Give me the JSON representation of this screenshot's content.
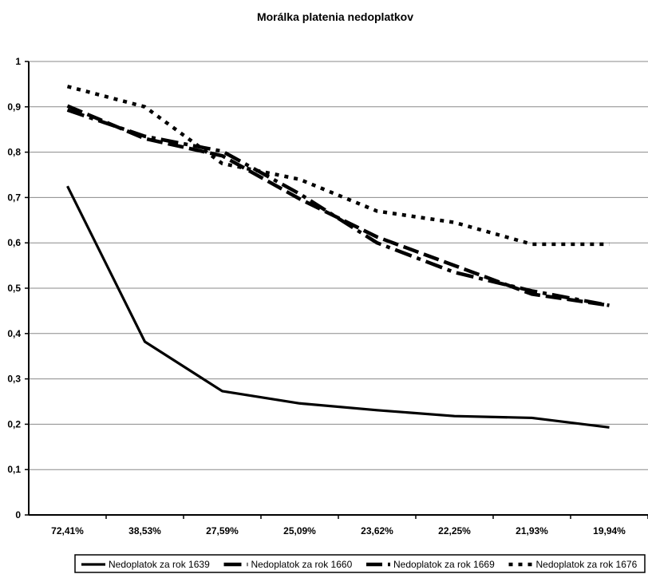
{
  "chart_data": {
    "type": "line",
    "title": "Morálka platenia nedoplatkov",
    "xlabel": "",
    "ylabel": "",
    "categories": [
      "72,41%",
      "38,53%",
      "27,59%",
      "25,09%",
      "23,62%",
      "22,25%",
      "21,93%",
      "19,94%"
    ],
    "y_ticks": [
      "0",
      "0,1",
      "0,2",
      "0,3",
      "0,4",
      "0,5",
      "0,6",
      "0,7",
      "0,8",
      "0,9",
      "1"
    ],
    "ylim": [
      0,
      1
    ],
    "grid": true,
    "legend_position": "bottom",
    "series": [
      {
        "name": "Nedoplatok za rok 1639",
        "style": "solid",
        "values": [
          0.725,
          0.382,
          0.273,
          0.246,
          0.231,
          0.218,
          0.214,
          0.193
        ]
      },
      {
        "name": "Nedoplatok za rok 1660",
        "style": "dash-dot",
        "values": [
          0.893,
          0.835,
          0.802,
          0.708,
          0.6,
          0.535,
          0.494,
          0.462
        ]
      },
      {
        "name": "Nedoplatok za rok 1669",
        "style": "dash",
        "values": [
          0.902,
          0.83,
          0.792,
          0.697,
          0.613,
          0.55,
          0.487,
          0.462
        ]
      },
      {
        "name": "Nedoplatok za rok 1676",
        "style": "dot",
        "values": [
          0.945,
          0.9,
          0.775,
          0.74,
          0.67,
          0.645,
          0.597,
          0.597
        ]
      }
    ]
  }
}
